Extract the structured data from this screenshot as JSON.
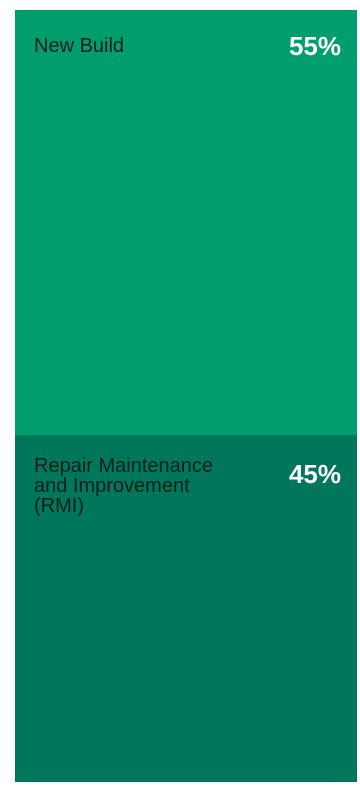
{
  "chart_data": {
    "type": "bar",
    "orientation": "stacked-vertical",
    "categories": [
      "New Build",
      "Repair Maintenance and Improvement (RMI)"
    ],
    "values": [
      55,
      45
    ],
    "value_labels": [
      "55%",
      "45%"
    ],
    "unit": "%"
  },
  "colors": {
    "new_build": "#009e6c",
    "rmi": "#00775a",
    "value_text": "#ffffff",
    "label_text": "#0f1f1a"
  },
  "segments": [
    {
      "label": "New Build",
      "value_text": "55%"
    },
    {
      "label": "Repair Maintenance and Improvement (RMI)",
      "value_text": "45%"
    }
  ]
}
